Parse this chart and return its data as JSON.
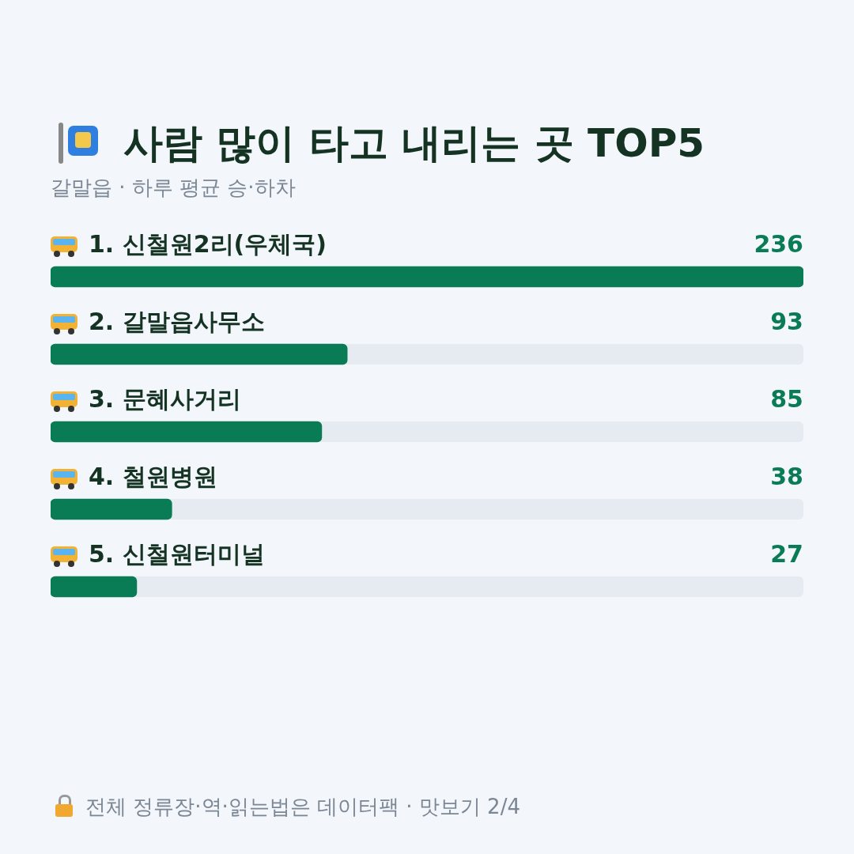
{
  "chart_data": {
    "type": "bar",
    "orientation": "horizontal",
    "title": "사람 많이 타고 내리는 곳 TOP5",
    "subtitle": "갈말읍 · 하루 평균 승·하차",
    "categories": [
      "1. 신철원2리(우체국)",
      "2. 갈말읍사무소",
      "3. 문혜사거리",
      "4. 철원병원",
      "5. 신철원터미널"
    ],
    "values": [
      236,
      93,
      85,
      38,
      27
    ],
    "color": "#0a7c55",
    "data_labels": true,
    "legend": false,
    "annotations": [
      "전체 정류장·역·읽는법은 데이터팩 · 맛보기 2/4"
    ]
  }
}
